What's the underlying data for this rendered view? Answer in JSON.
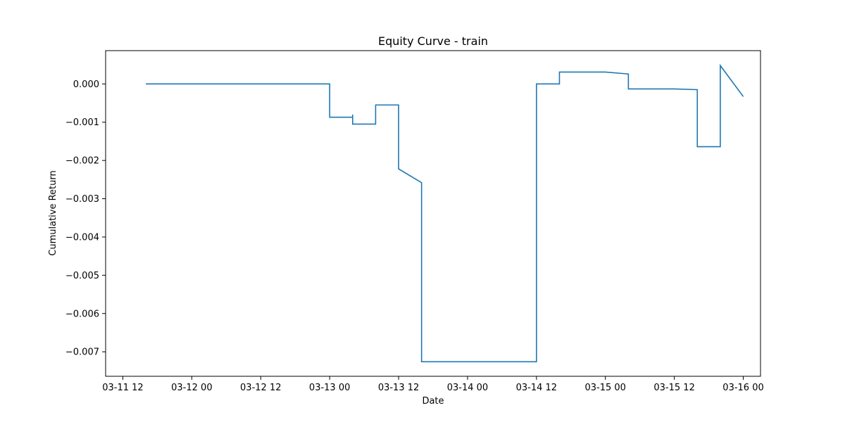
{
  "chart_data": {
    "type": "line",
    "title": "Equity Curve - train",
    "xlabel": "Date",
    "ylabel": "Cumulative Return",
    "grid": false,
    "legend": "none",
    "colors": {
      "line": "#1f77b4"
    },
    "x_ticks": [
      "03-11 12",
      "03-12 00",
      "03-12 12",
      "03-13 00",
      "03-13 12",
      "03-14 00",
      "03-14 12",
      "03-15 00",
      "03-15 12",
      "03-16 00"
    ],
    "y_ticks": [
      "0.000",
      "−0.001",
      "−0.002",
      "−0.003",
      "−0.004",
      "−0.005",
      "−0.006",
      "−0.007"
    ],
    "xlim": [
      "2023-03-11 09:00",
      "2023-03-16 03:00"
    ],
    "ylim": [
      -0.00764,
      0.00087
    ],
    "series": [
      {
        "points": [
          {
            "x": "2023-03-11 16:00",
            "y": 0.0
          },
          {
            "x": "2023-03-13 00:00",
            "y": 0.0
          },
          {
            "x": "2023-03-13 00:00",
            "y": -0.00087
          },
          {
            "x": "2023-03-13 04:00",
            "y": -0.00087
          },
          {
            "x": "2023-03-13 04:00",
            "y": -0.0008
          },
          {
            "x": "2023-03-13 04:00",
            "y": -0.00105
          },
          {
            "x": "2023-03-13 08:00",
            "y": -0.00105
          },
          {
            "x": "2023-03-13 08:00",
            "y": -0.00055
          },
          {
            "x": "2023-03-13 12:00",
            "y": -0.00055
          },
          {
            "x": "2023-03-13 12:00",
            "y": -0.00222
          },
          {
            "x": "2023-03-13 16:00",
            "y": -0.00258
          },
          {
            "x": "2023-03-13 16:00",
            "y": -0.00726
          },
          {
            "x": "2023-03-14 12:00",
            "y": -0.00726
          },
          {
            "x": "2023-03-14 12:00",
            "y": 0.0
          },
          {
            "x": "2023-03-14 16:00",
            "y": 0.0
          },
          {
            "x": "2023-03-14 16:00",
            "y": 0.00031
          },
          {
            "x": "2023-03-15 00:00",
            "y": 0.00031
          },
          {
            "x": "2023-03-15 04:00",
            "y": 0.00026
          },
          {
            "x": "2023-03-15 04:00",
            "y": -0.00013
          },
          {
            "x": "2023-03-15 12:00",
            "y": -0.00013
          },
          {
            "x": "2023-03-15 16:00",
            "y": -0.00015
          },
          {
            "x": "2023-03-15 16:00",
            "y": -0.00164
          },
          {
            "x": "2023-03-15 20:00",
            "y": -0.00164
          },
          {
            "x": "2023-03-15 20:00",
            "y": 0.00048
          },
          {
            "x": "2023-03-16 00:00",
            "y": -0.00033
          }
        ]
      }
    ]
  }
}
